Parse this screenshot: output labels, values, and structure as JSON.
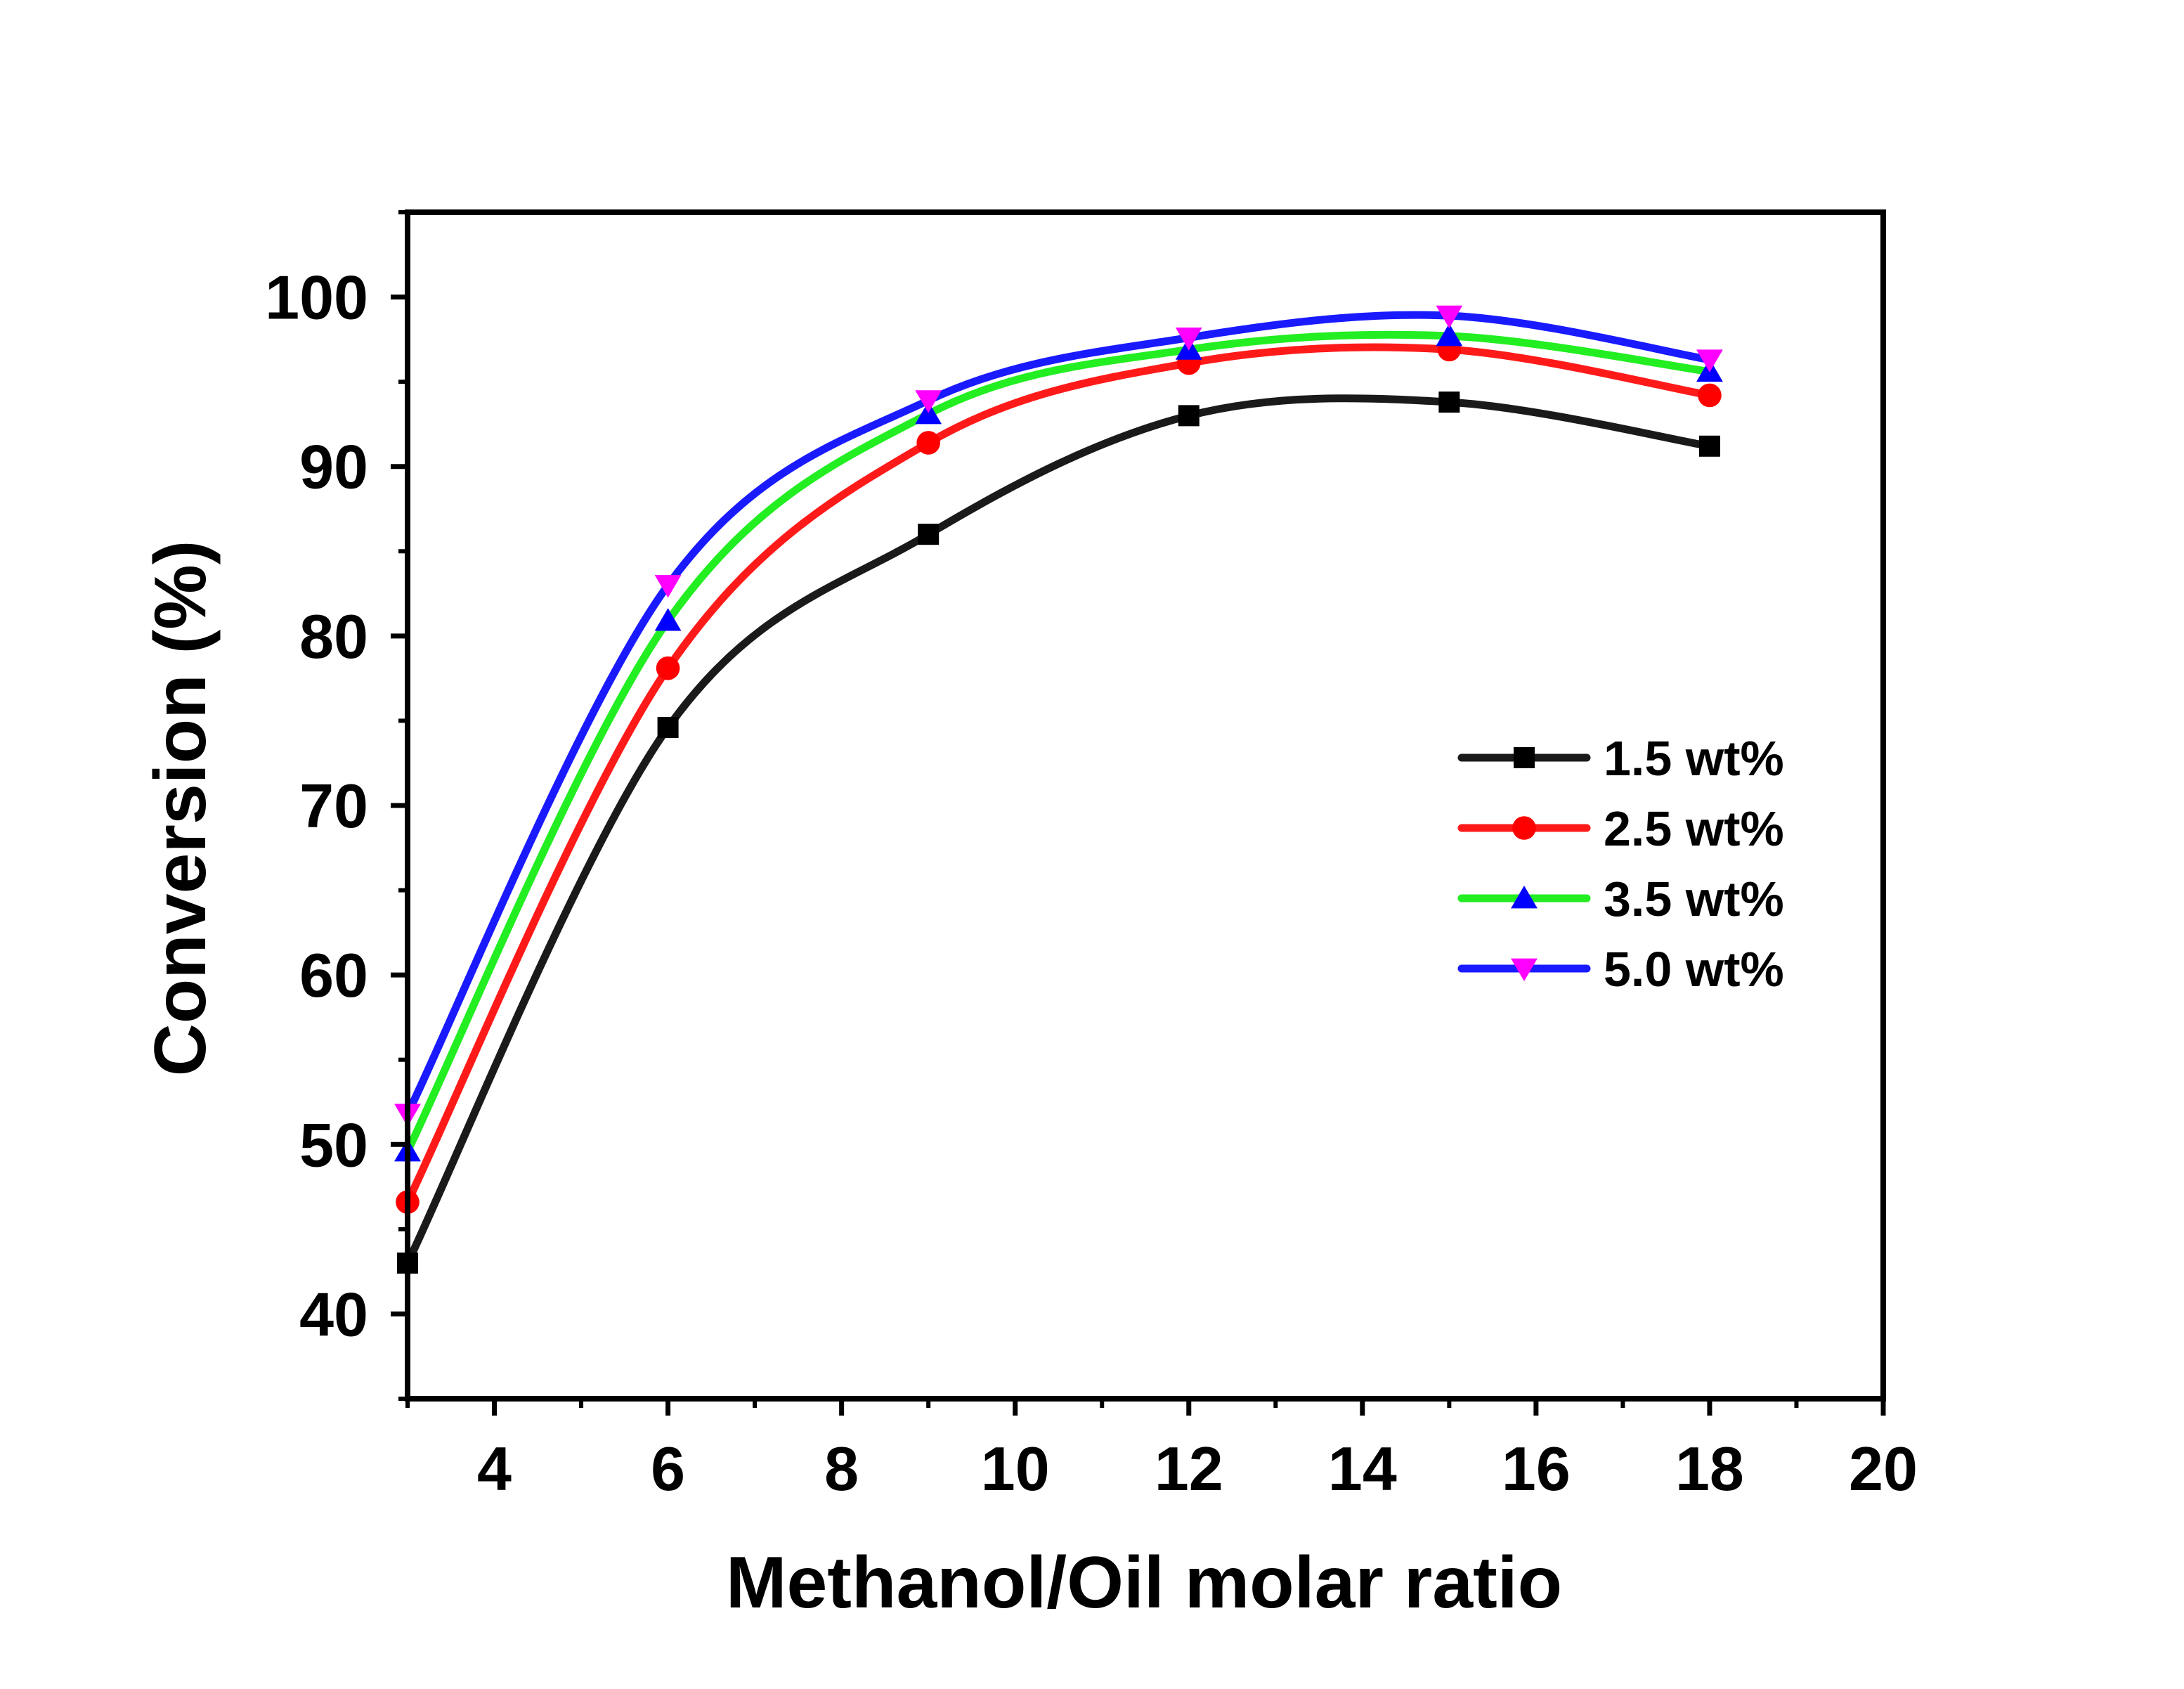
{
  "chart_data": {
    "type": "line",
    "xlabel": "Methanol/Oil molar ratio",
    "ylabel": "Conversion (%)",
    "xlim": [
      3,
      20
    ],
    "ylim": [
      35,
      105
    ],
    "xticks": [
      4,
      6,
      8,
      10,
      12,
      14,
      16,
      18,
      20
    ],
    "yticks": [
      40,
      50,
      60,
      70,
      80,
      90,
      100
    ],
    "grid": false,
    "legend_position": "right-middle",
    "x": [
      3,
      6,
      9,
      12,
      15,
      18
    ],
    "series": [
      {
        "name": "1.5 wt%",
        "values": [
          43.0,
          74.6,
          86.0,
          93.0,
          93.8,
          91.2
        ],
        "color": "#000000",
        "line_color": "#1a1a1a",
        "marker": "square"
      },
      {
        "name": "2.5 wt%",
        "values": [
          46.6,
          78.1,
          91.4,
          96.1,
          96.9,
          94.2
        ],
        "color": "#ff0000",
        "line_color": "#ff1a1a",
        "marker": "circle"
      },
      {
        "name": "3.5 wt%",
        "values": [
          49.6,
          80.9,
          93.1,
          96.9,
          97.7,
          95.6
        ],
        "color": "#0000ff",
        "line_color": "#22ee22",
        "marker": "triangle-up"
      },
      {
        "name": "5.0 wt%",
        "values": [
          51.8,
          83.0,
          93.9,
          97.6,
          98.9,
          96.3
        ],
        "color": "#ff00ff",
        "line_color": "#1a1aff",
        "marker": "triangle-down"
      }
    ]
  }
}
